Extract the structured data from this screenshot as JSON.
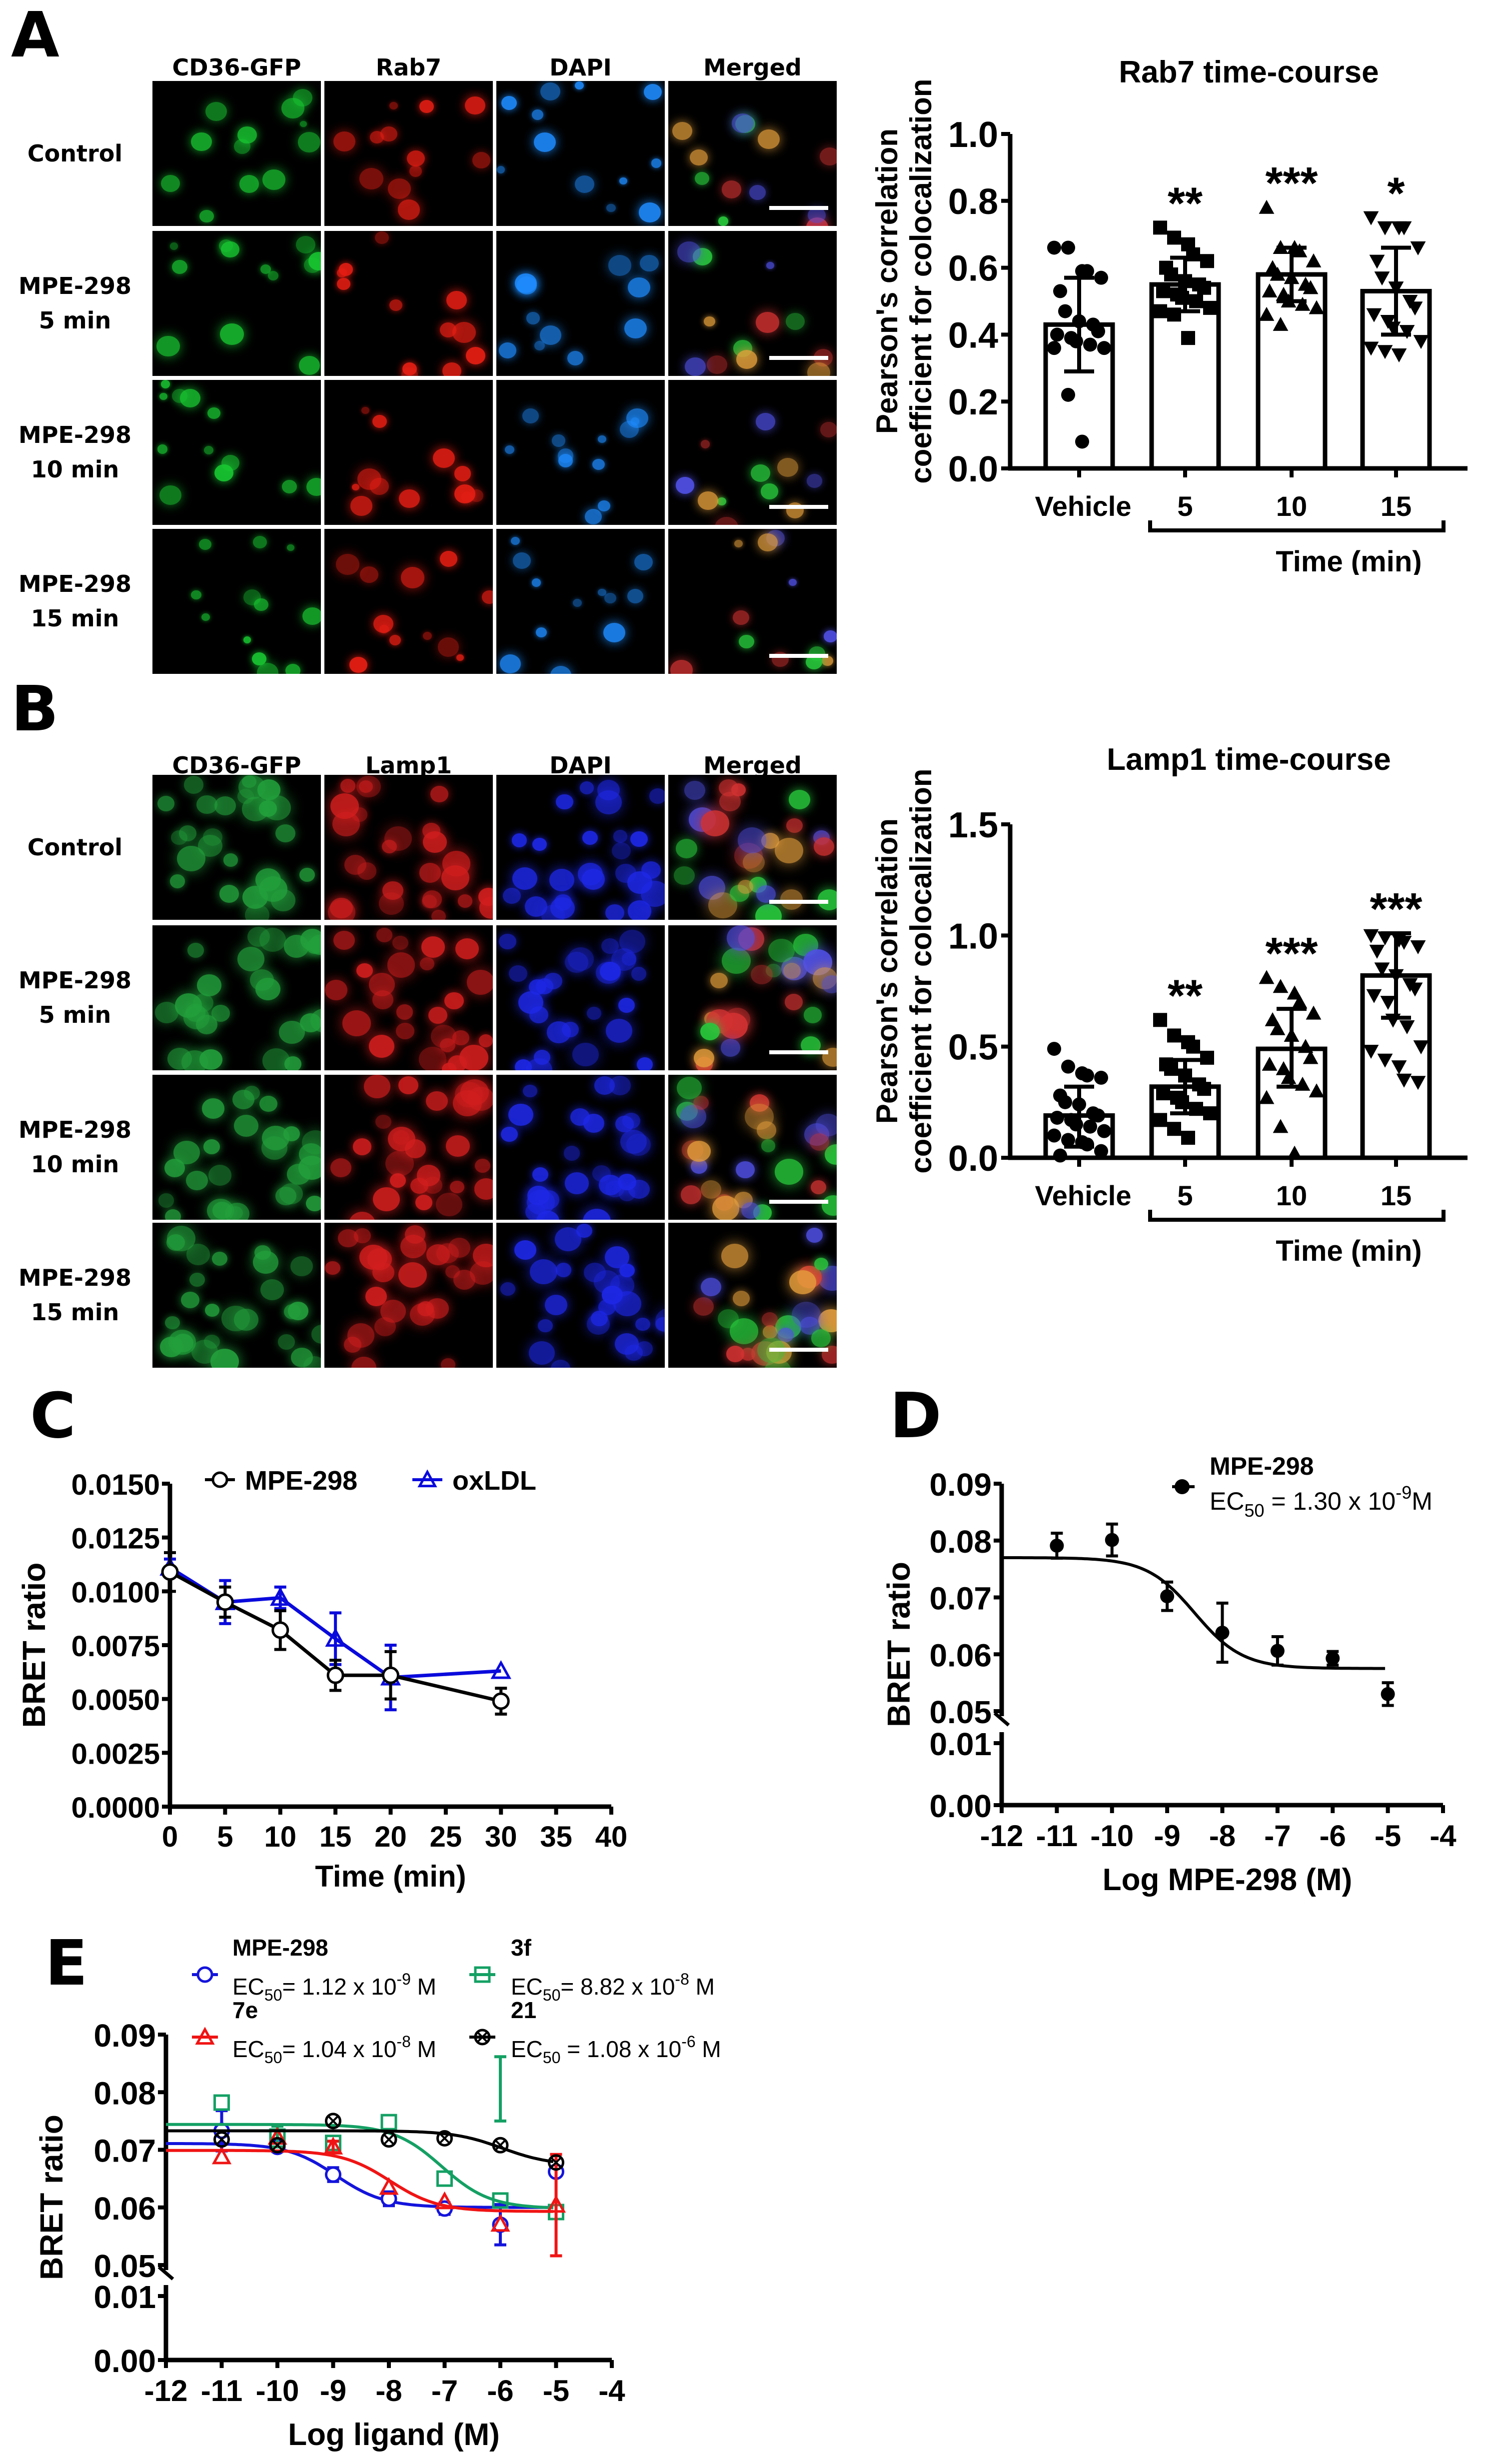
{
  "panels": {
    "A": {
      "label": "A",
      "columns": [
        "CD36-GFP",
        "Rab7",
        "DAPI",
        "Merged"
      ],
      "rows": [
        [
          "Control"
        ],
        [
          "MPE-298",
          "5 min"
        ],
        [
          "MPE-298",
          "10 min"
        ],
        [
          "MPE-298",
          "15 min"
        ]
      ],
      "channel_colors": [
        "#19c832",
        "#e61e14",
        "#1e8cff",
        "#c83c3c"
      ]
    },
    "B": {
      "label": "B",
      "columns": [
        "CD36-GFP",
        "Lamp1",
        "DAPI",
        "Merged"
      ],
      "rows": [
        [
          "Control"
        ],
        [
          "MPE-298",
          "5 min"
        ],
        [
          "MPE-298",
          "10 min"
        ],
        [
          "MPE-298",
          "15 min"
        ]
      ],
      "channel_colors": [
        "#23a03c",
        "#d21e1e",
        "#1e28e6",
        "#8ca050"
      ]
    },
    "C": {
      "label": "C"
    },
    "D": {
      "label": "D"
    },
    "E": {
      "label": "E"
    }
  },
  "chart_data": [
    {
      "id": "A-chart",
      "type": "bar",
      "title": "Rab7 time-course",
      "ylabel": "Pearson's correlation coefficient  for colocalization",
      "ylabel_lines": [
        "Pearson's correlation",
        "coefficient  for colocalization"
      ],
      "xlabel": "Time (min)",
      "categories": [
        "Vehicle",
        "5",
        "10",
        "15"
      ],
      "values": [
        0.43,
        0.55,
        0.58,
        0.53
      ],
      "error_low": [
        0.29,
        0.47,
        0.5,
        0.4
      ],
      "error_high": [
        0.57,
        0.63,
        0.66,
        0.66
      ],
      "significance": [
        "",
        "**",
        "***",
        "*"
      ],
      "markers": [
        "circle",
        "square",
        "triangle-up",
        "triangle-down"
      ],
      "yticks": [
        "0.0",
        "0.2",
        "0.4",
        "0.6",
        "0.8",
        "1.0"
      ],
      "ylim": [
        0,
        1.0
      ],
      "points": [
        [
          0.66,
          0.66,
          0.59,
          0.59,
          0.57,
          0.53,
          0.47,
          0.44,
          0.43,
          0.41,
          0.4,
          0.39,
          0.38,
          0.37,
          0.36,
          0.36,
          0.22,
          0.08
        ],
        [
          0.72,
          0.69,
          0.67,
          0.64,
          0.62,
          0.6,
          0.58,
          0.56,
          0.55,
          0.54,
          0.53,
          0.52,
          0.51,
          0.5,
          0.48,
          0.47,
          0.46,
          0.39
        ],
        [
          0.78,
          0.66,
          0.66,
          0.65,
          0.62,
          0.6,
          0.58,
          0.57,
          0.55,
          0.54,
          0.53,
          0.52,
          0.5,
          0.49,
          0.48,
          0.46,
          0.43
        ],
        [
          0.75,
          0.72,
          0.72,
          0.72,
          0.66,
          0.62,
          0.57,
          0.54,
          0.5,
          0.48,
          0.46,
          0.44,
          0.42,
          0.41,
          0.38,
          0.36,
          0.35,
          0.34
        ]
      ]
    },
    {
      "id": "B-chart",
      "type": "bar",
      "title": "Lamp1 time-course",
      "ylabel": "Pearson's correlation coefficient  for colocalization",
      "ylabel_lines": [
        "Pearson's correlation",
        "coefficient  for colocalization"
      ],
      "xlabel": "Time (min)",
      "categories": [
        "Vehicle",
        "5",
        "10",
        "15"
      ],
      "values": [
        0.19,
        0.32,
        0.49,
        0.82
      ],
      "error_low": [
        0.05,
        0.2,
        0.32,
        0.63
      ],
      "error_high": [
        0.32,
        0.44,
        0.67,
        1.01
      ],
      "significance": [
        "",
        "**",
        "***",
        "***"
      ],
      "markers": [
        "circle",
        "square",
        "triangle-up",
        "triangle-down"
      ],
      "yticks": [
        "0.0",
        "0.5",
        "1.0",
        "1.5"
      ],
      "ylim": [
        0,
        1.5
      ],
      "points": [
        [
          0.49,
          0.41,
          0.38,
          0.37,
          0.36,
          0.28,
          0.25,
          0.24,
          0.2,
          0.19,
          0.18,
          0.17,
          0.15,
          0.14,
          0.12,
          0.1,
          0.08,
          0.07,
          0.06,
          0.03,
          0.01
        ],
        [
          0.62,
          0.55,
          0.52,
          0.5,
          0.45,
          0.42,
          0.4,
          0.37,
          0.33,
          0.31,
          0.29,
          0.27,
          0.25,
          0.22,
          0.2,
          0.17,
          0.13,
          0.09
        ],
        [
          0.81,
          0.77,
          0.74,
          0.7,
          0.65,
          0.62,
          0.58,
          0.55,
          0.5,
          0.45,
          0.42,
          0.4,
          0.36,
          0.33,
          0.3,
          0.27,
          0.14,
          0.02
        ],
        [
          1.0,
          0.99,
          0.98,
          0.97,
          0.95,
          0.93,
          0.85,
          0.82,
          0.78,
          0.76,
          0.73,
          0.7,
          0.62,
          0.59,
          0.5,
          0.48,
          0.44,
          0.41,
          0.35,
          0.34
        ]
      ]
    },
    {
      "id": "C-chart",
      "type": "line",
      "title": "",
      "ylabel": "BRET ratio",
      "xlabel": "Time (min)",
      "xticks": [
        "0",
        "5",
        "10",
        "15",
        "20",
        "25",
        "30",
        "35",
        "40"
      ],
      "xlim": [
        0,
        40
      ],
      "yticks": [
        "0.0000",
        "0.0025",
        "0.0050",
        "0.0075",
        "0.0100",
        "0.0125",
        "0.0150"
      ],
      "ylim": [
        0,
        0.015
      ],
      "legend_position": "top",
      "series": [
        {
          "name": "MPE-298",
          "color": "#000000",
          "marker": "open-circle",
          "x": [
            0,
            5,
            10,
            15,
            20,
            30
          ],
          "y": [
            0.0109,
            0.0095,
            0.0082,
            0.0061,
            0.0061,
            0.0049
          ],
          "err": [
            0.0009,
            0.0007,
            0.0009,
            0.0007,
            0.0011,
            0.0006
          ]
        },
        {
          "name": "oxLDL",
          "color": "#0a0adc",
          "marker": "open-triangle",
          "x": [
            0,
            5,
            10,
            15,
            20,
            30
          ],
          "y": [
            0.0111,
            0.0095,
            0.0097,
            0.0078,
            0.006,
            0.0063
          ],
          "err": [
            0.0004,
            0.001,
            0.0005,
            0.0012,
            0.0015,
            0.0
          ]
        }
      ]
    },
    {
      "id": "D-chart",
      "type": "line",
      "title": "",
      "ylabel": "BRET ratio",
      "xlabel": "Log MPE-298 (M)",
      "xticks": [
        "-12",
        "-11",
        "-10",
        "-9",
        "-8",
        "-7",
        "-6",
        "-5",
        "-4"
      ],
      "xlim": [
        -12,
        -4
      ],
      "yticks_upper": [
        "0.05",
        "0.06",
        "0.07",
        "0.08",
        "0.09"
      ],
      "yticks_lower": [
        "0.00",
        "0.01"
      ],
      "axis_break": [
        0.01,
        0.05
      ],
      "legend_position": "top-right",
      "series": [
        {
          "name": "MPE-298",
          "ec50_label": "EC",
          "ec50_sub": "50",
          "ec50_text": " = 1.30 x 10",
          "ec50_exp": "-9",
          "ec50_unit": "M",
          "color": "#000000",
          "marker": "filled-circle",
          "x": [
            -11,
            -10,
            -9,
            -8,
            -7,
            -6,
            -5
          ],
          "y": [
            0.0791,
            0.0801,
            0.0702,
            0.0638,
            0.0606,
            0.0593,
            0.053
          ],
          "err": [
            0.0022,
            0.0028,
            0.0025,
            0.0052,
            0.0025,
            0.0012,
            0.002
          ],
          "fit": {
            "top": 0.077,
            "bottom": 0.0575,
            "logec50": -8.5
          }
        }
      ]
    },
    {
      "id": "E-chart",
      "type": "line",
      "title": "",
      "ylabel": "BRET ratio",
      "xlabel": "Log ligand (M)",
      "xticks": [
        "-12",
        "-11",
        "-10",
        "-9",
        "-8",
        "-7",
        "-6",
        "-5",
        "-4"
      ],
      "xlim": [
        -12,
        -4
      ],
      "yticks_upper": [
        "0.05",
        "0.06",
        "0.07",
        "0.08",
        "0.09"
      ],
      "yticks_lower": [
        "0.00",
        "0.01"
      ],
      "axis_break": [
        0.01,
        0.05
      ],
      "legend_position": "top",
      "series": [
        {
          "name": "MPE-298",
          "ec50_text": "= 1.12 x 10",
          "ec50_exp": "-9",
          "ec50_unit": " M",
          "color": "#1414dc",
          "marker": "open-circle",
          "x": [
            -11,
            -10,
            -9,
            -8,
            -7,
            -6,
            -5
          ],
          "y": [
            0.0733,
            0.0705,
            0.0657,
            0.0615,
            0.0598,
            0.057,
            0.0662
          ],
          "err": [
            0.0035,
            0.0008,
            0.0012,
            0.0012,
            0.001,
            0.0035,
            0.0
          ],
          "fit": {
            "top": 0.0711,
            "bottom": 0.06,
            "logec50": -8.95
          }
        },
        {
          "name": "3f",
          "ec50_text": "= 8.82 x 10",
          "ec50_exp": "-8",
          "ec50_unit": " M",
          "color": "#14a064",
          "marker": "open-square",
          "x": [
            -11,
            -10,
            -9,
            -8,
            -7,
            -6,
            -5
          ],
          "y": [
            0.0782,
            0.0723,
            0.0712,
            0.0748,
            0.065,
            0.0612,
            0.0592
          ],
          "err": [
            0.0,
            0.0018,
            0.0,
            0.0,
            0.0,
            0.0138,
            0.0
          ],
          "fit": {
            "top": 0.0744,
            "bottom": 0.0598,
            "logec50": -7.05
          }
        },
        {
          "name": "7e",
          "ec50_text": "= 1.04 x 10",
          "ec50_exp": "-8",
          "ec50_unit": " M",
          "color": "#f01414",
          "marker": "open-triangle",
          "x": [
            -11,
            -10,
            -9,
            -8,
            -7,
            -6,
            -5
          ],
          "y": [
            0.0688,
            0.0722,
            0.0705,
            0.0635,
            0.061,
            0.0571,
            0.0604
          ],
          "err": [
            0.0,
            0.0,
            0.001,
            0.0,
            0.0,
            0.0,
            0.0088
          ],
          "fit": {
            "top": 0.0699,
            "bottom": 0.0593,
            "logec50": -7.98
          }
        },
        {
          "name": "21",
          "ec50_text": " = 1.08 x 10",
          "ec50_exp": "-6",
          "ec50_unit": " M",
          "color": "#000000",
          "marker": "circle-x",
          "x": [
            -11,
            -10,
            -9,
            -8,
            -7,
            -6,
            -5
          ],
          "y": [
            0.0718,
            0.0708,
            0.075,
            0.0718,
            0.072,
            0.0708,
            0.0678
          ],
          "err": [
            0,
            0,
            0,
            0,
            0,
            0,
            0
          ],
          "fit": {
            "top": 0.0733,
            "bottom": 0.0673,
            "logec50": -5.97
          }
        }
      ]
    }
  ]
}
